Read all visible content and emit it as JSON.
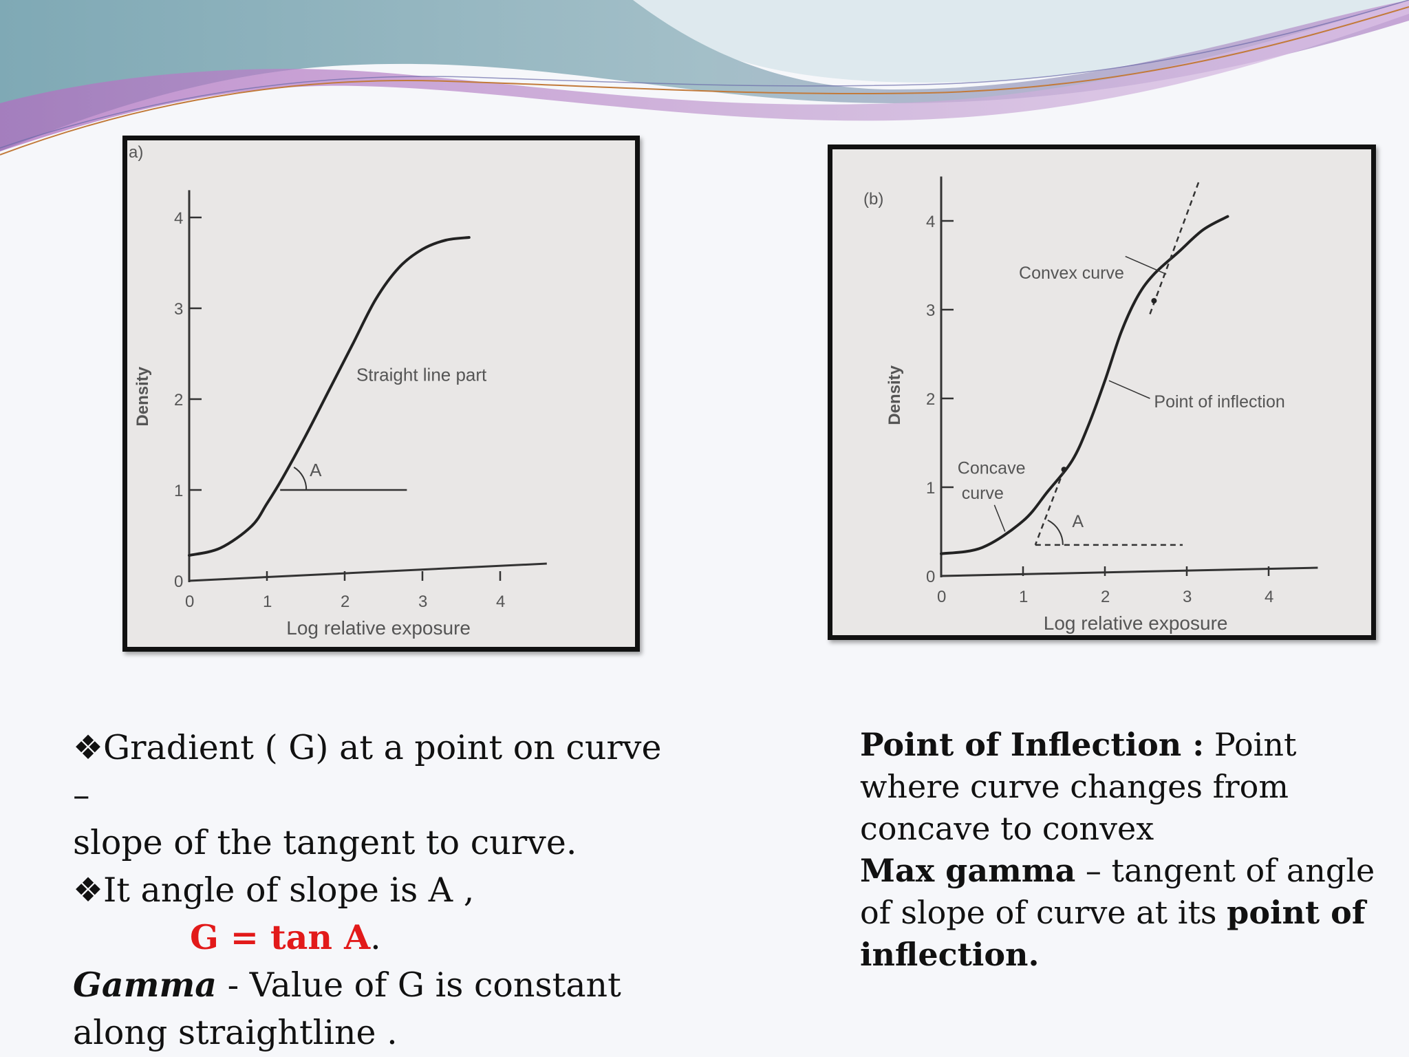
{
  "colors": {
    "accent": "#e21a1a",
    "wave_top": "#8fb5c2",
    "wave_mid": "#b48fc8",
    "figure_bg": "#e9e7e6"
  },
  "left_text": {
    "bullet": "❖",
    "line1": "Gradient ( G) at a point on curve  –",
    "line2": "slope of the tangent to curve.",
    "line3": "It angle of slope is A ,",
    "formula": "G = tan A",
    "period": ".",
    "gamma_term": "Gamma",
    "gamma_rest": " - Value of  G is constant",
    "line6": "along straightline ."
  },
  "right_text": {
    "poi_term": "Point  of Inflection :",
    "poi_rest": " Point where curve changes from concave to convex",
    "max_term": "Max gamma",
    "max_rest": " – tangent of angle of slope of curve at its ",
    "max_end": "point of inflection."
  },
  "chart_data": [
    {
      "type": "line",
      "panel_label": "a)",
      "xlabel": "Log relative exposure",
      "ylabel": "Density",
      "x_ticks": [
        "0",
        "1",
        "2",
        "3",
        "4"
      ],
      "y_ticks": [
        "0",
        "1",
        "2",
        "3",
        "4"
      ],
      "xlim": [
        0,
        4.6
      ],
      "ylim": [
        0,
        4.3
      ],
      "series": [
        {
          "x": [
            0,
            0.4,
            0.8,
            1.0,
            1.2,
            1.5,
            1.8,
            2.1,
            2.4,
            2.7,
            3.0,
            3.3,
            3.6
          ],
          "y": [
            0.28,
            0.36,
            0.6,
            0.85,
            1.13,
            1.6,
            2.1,
            2.6,
            3.1,
            3.45,
            3.65,
            3.75,
            3.78
          ]
        }
      ],
      "annotations": [
        {
          "text": "Straight line part",
          "x": 2.15,
          "y": 2.2
        },
        {
          "text": "A",
          "x": 1.55,
          "y": 1.15
        }
      ],
      "tangent_point": {
        "x": 1.17,
        "y": 1.0
      },
      "horizontal_ref_end": {
        "x": 2.8,
        "y": 1.0
      }
    },
    {
      "type": "line",
      "panel_label": "(b)",
      "xlabel": "Log relative exposure",
      "ylabel": "Density",
      "x_ticks": [
        "0",
        "1",
        "2",
        "3",
        "4"
      ],
      "y_ticks": [
        "0",
        "1",
        "2",
        "3",
        "4"
      ],
      "xlim": [
        0,
        4.6
      ],
      "ylim": [
        0,
        4.5
      ],
      "series": [
        {
          "x": [
            0,
            0.5,
            1.0,
            1.3,
            1.6,
            1.8,
            2.0,
            2.2,
            2.4,
            2.6,
            2.9,
            3.2,
            3.5
          ],
          "y": [
            0.25,
            0.32,
            0.62,
            0.95,
            1.3,
            1.7,
            2.2,
            2.75,
            3.15,
            3.4,
            3.65,
            3.9,
            4.05
          ]
        }
      ],
      "annotations": [
        {
          "text": "Convex curve",
          "x": 0.95,
          "y": 3.35
        },
        {
          "text": "Point of inflection",
          "x": 2.55,
          "y": 1.9
        },
        {
          "text": "Concave",
          "x": 0.25,
          "y": 1.15
        },
        {
          "text": "curve",
          "x": 0.25,
          "y": 0.87
        },
        {
          "text": "A",
          "x": 1.6,
          "y": 0.55
        }
      ],
      "inflection_point": {
        "x": 2.0,
        "y": 2.2
      },
      "lower_tangent_point": {
        "x": 1.5,
        "y": 1.2
      },
      "upper_tangent_point": {
        "x": 2.6,
        "y": 3.1
      }
    }
  ]
}
